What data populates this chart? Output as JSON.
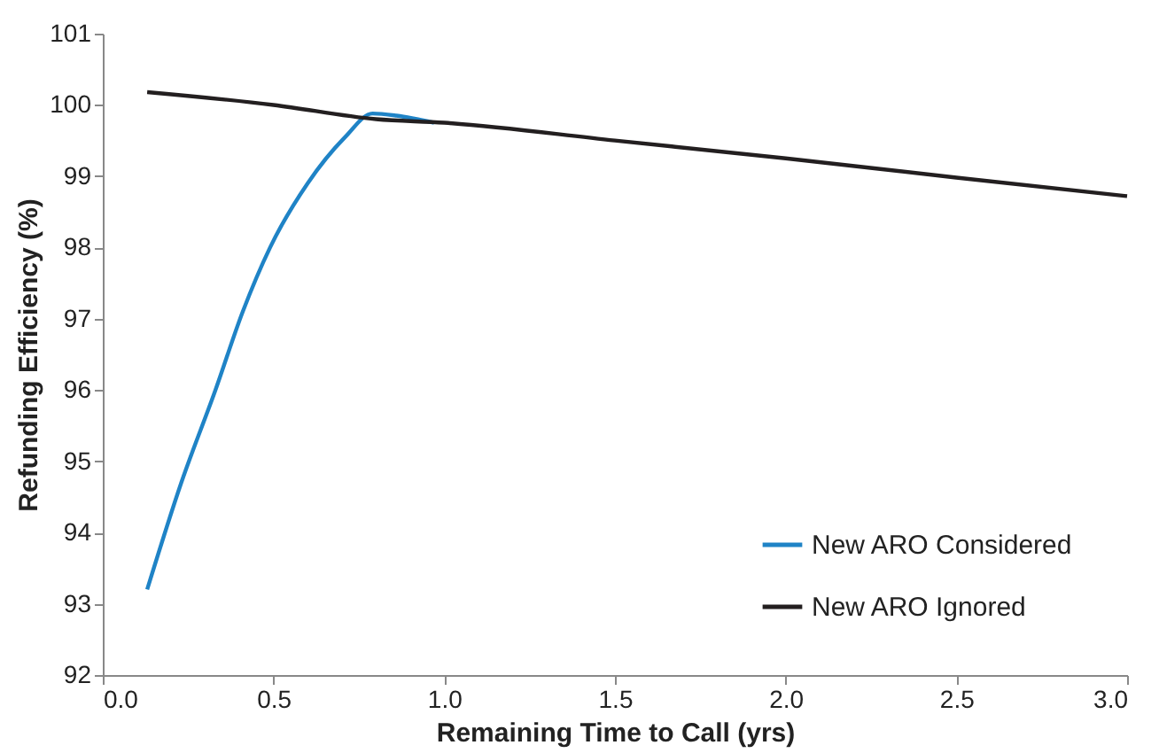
{
  "chart_data": {
    "type": "line",
    "xlabel": "Remaining Time to Call (yrs)",
    "ylabel": "Refunding Efficiency (%)",
    "xlim": [
      0,
      3
    ],
    "xticks": [
      {
        "value": 0,
        "label": "0.0"
      },
      {
        "value": 0.5,
        "label": "0.5"
      },
      {
        "value": 1,
        "label": "1.0"
      },
      {
        "value": 1.5,
        "label": "1.5"
      },
      {
        "value": 2,
        "label": "2.0"
      },
      {
        "value": 2.5,
        "label": "2.5"
      },
      {
        "value": 3,
        "label": "3.0"
      }
    ],
    "ylim": [
      92,
      101
    ],
    "yticks": [
      92,
      93,
      94,
      95,
      96,
      97,
      98,
      99,
      100,
      101
    ],
    "grid": false,
    "legend": "bottom right",
    "marker": "none",
    "line_style": "solid",
    "series": [
      {
        "name": "New ARO Considered",
        "color": "#1f83c6",
        "x": [
          0.13,
          0.23,
          0.33,
          0.41,
          0.49,
          0.6,
          0.71,
          0.79,
          0.86,
          0.97
        ],
        "values": [
          93.2,
          94.7,
          96.0,
          97.1,
          98.0,
          98.9,
          99.55,
          99.88,
          99.85,
          99.75
        ]
      },
      {
        "name": "New ARO Ignored",
        "color": "#231f20",
        "x": [
          0.13,
          0.5,
          0.8,
          1.0,
          1.5,
          2.0,
          2.5,
          3.0
        ],
        "values": [
          100.18,
          100.0,
          99.8,
          99.75,
          99.5,
          99.25,
          98.98,
          98.72
        ]
      }
    ]
  }
}
